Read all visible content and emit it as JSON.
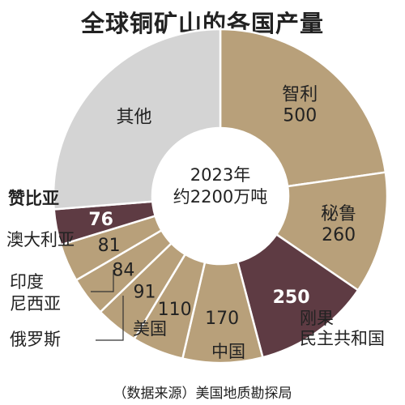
{
  "title": "全球铜矿山的各国产量",
  "source": "（数据来源）美国地质勘探局",
  "chart_data": {
    "type": "pie",
    "center_text": [
      "2023年",
      "约2200万吨"
    ],
    "slices": [
      {
        "name": "智利",
        "value": 500,
        "color": "#b8a07a",
        "highlight": false
      },
      {
        "name": "秘鲁",
        "value": 260,
        "color": "#b8a07a",
        "highlight": false
      },
      {
        "name": "刚果民主共和国",
        "value": 250,
        "color": "#5e3b43",
        "highlight": true
      },
      {
        "name": "中国",
        "value": 170,
        "color": "#b8a07a",
        "highlight": false
      },
      {
        "name": "美国",
        "value": 110,
        "color": "#b8a07a",
        "highlight": false
      },
      {
        "name": "俄罗斯",
        "value": 91,
        "color": "#b8a07a",
        "highlight": false
      },
      {
        "name": "印度尼西亚",
        "value": 84,
        "color": "#b8a07a",
        "highlight": false
      },
      {
        "name": "澳大利亚",
        "value": 81,
        "color": "#b8a07a",
        "highlight": false
      },
      {
        "name": "赞比亚",
        "value": 76,
        "color": "#5e3b43",
        "highlight": true
      },
      {
        "name": "其他",
        "value": 578,
        "color": "#d4d4d4",
        "highlight": false
      }
    ]
  }
}
